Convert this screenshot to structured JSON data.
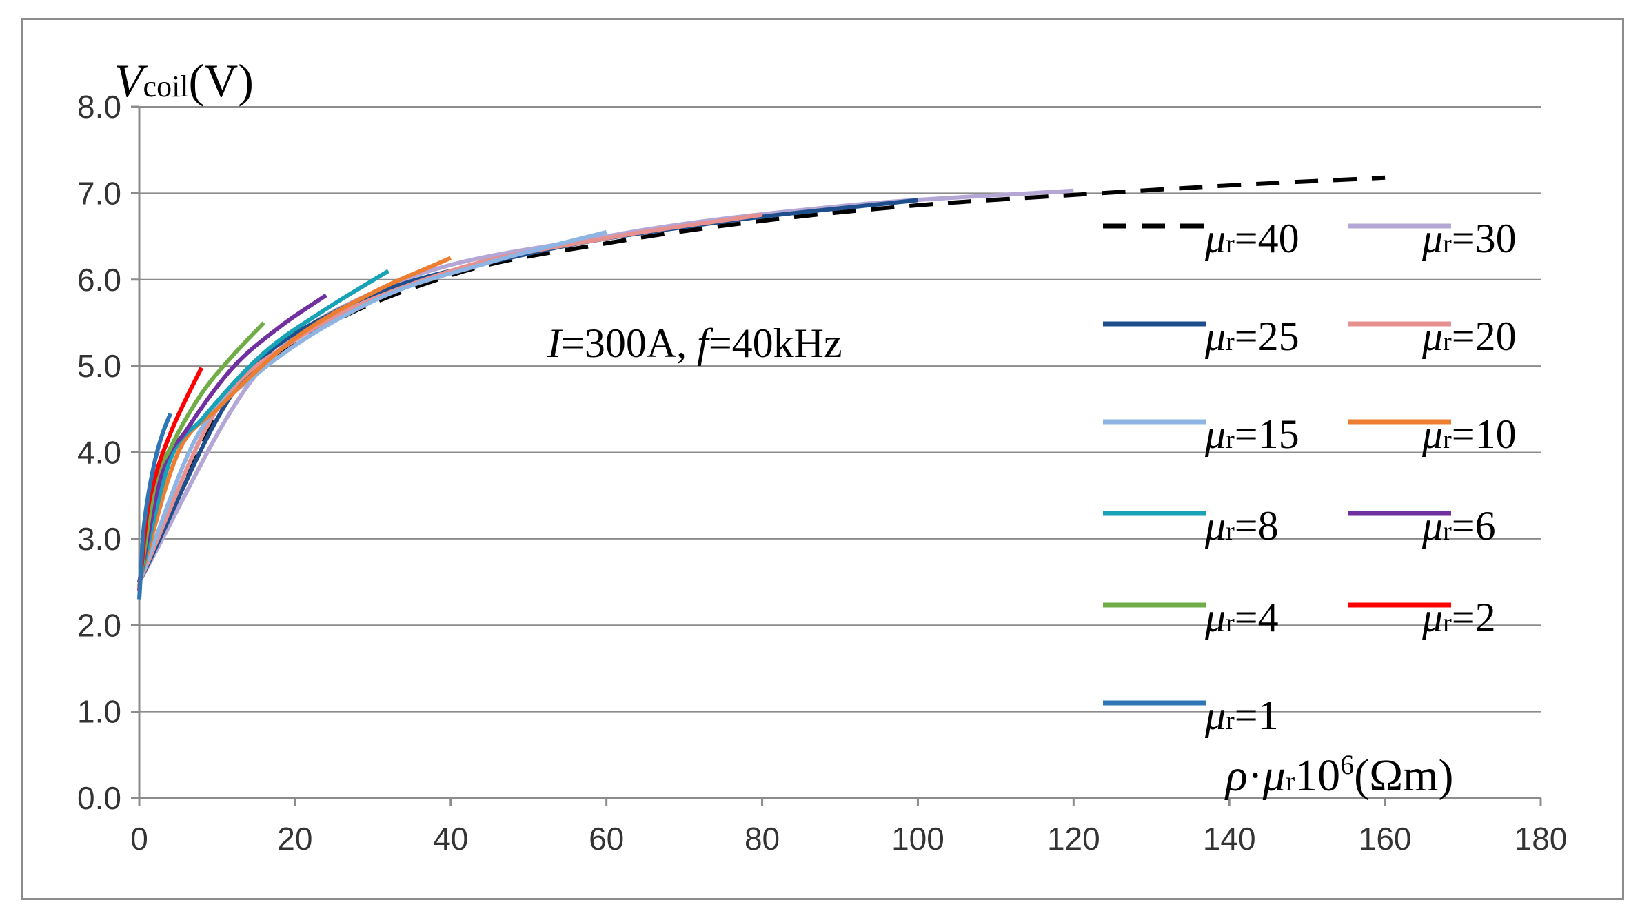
{
  "chart_data": {
    "type": "line",
    "title": "",
    "annotation": {
      "current_symbol": "I",
      "current_value": "=300A, ",
      "freq_symbol": "f",
      "freq_value": "=40kHz"
    },
    "ylabel": {
      "symbol": "V",
      "subscript": "coil",
      "unit": "(V)"
    },
    "xlabel": {
      "rho": "ρ",
      "dot": "·",
      "mu": "μ",
      "sub": "r",
      "mantissa": "10",
      "exponent": "6",
      "unit": "(Ωm)"
    },
    "xlim": [
      0,
      180
    ],
    "ylim": [
      0,
      8
    ],
    "xticks": [
      "0",
      "20",
      "40",
      "60",
      "80",
      "100",
      "120",
      "140",
      "160",
      "180"
    ],
    "yticks": [
      "0.0",
      "1.0",
      "2.0",
      "3.0",
      "4.0",
      "5.0",
      "6.0",
      "7.0",
      "8.0"
    ],
    "grid": true,
    "legend_position": "right",
    "series": [
      {
        "name": "μr=1",
        "mu_r": "1",
        "color": "#2e75b6",
        "dashed": false,
        "x": [
          0,
          0.5,
          1,
          2,
          3,
          4
        ],
        "y": [
          2.3,
          3.05,
          3.42,
          3.9,
          4.22,
          4.45
        ]
      },
      {
        "name": "μr=2",
        "mu_r": "2",
        "color": "#ff0000",
        "dashed": false,
        "x": [
          0,
          1,
          2,
          4,
          6,
          8
        ],
        "y": [
          2.4,
          3.28,
          3.7,
          4.22,
          4.62,
          4.98
        ]
      },
      {
        "name": "μr=4",
        "mu_r": "4",
        "color": "#70ad47",
        "dashed": false,
        "x": [
          0,
          2,
          4,
          8,
          12,
          16
        ],
        "y": [
          2.45,
          3.62,
          4.05,
          4.68,
          5.12,
          5.5
        ]
      },
      {
        "name": "μr=6",
        "mu_r": "6",
        "color": "#7030a0",
        "dashed": false,
        "x": [
          0,
          3,
          6,
          12,
          18,
          24
        ],
        "y": [
          2.5,
          3.8,
          4.25,
          4.98,
          5.45,
          5.82
        ]
      },
      {
        "name": "μr=8",
        "mu_r": "8",
        "color": "#17a2b8",
        "dashed": false,
        "x": [
          0,
          4,
          8,
          16,
          24,
          32
        ],
        "y": [
          2.5,
          3.92,
          4.38,
          5.15,
          5.66,
          6.1
        ]
      },
      {
        "name": "μr=10",
        "mu_r": "10",
        "color": "#ed7d31",
        "dashed": false,
        "x": [
          0,
          5,
          10,
          20,
          30,
          40
        ],
        "y": [
          2.5,
          4.0,
          4.5,
          5.32,
          5.85,
          6.25
        ]
      },
      {
        "name": "μr=15",
        "mu_r": "15",
        "color": "#8eb4e3",
        "dashed": false,
        "x": [
          0,
          7.5,
          15,
          30,
          45,
          60
        ],
        "y": [
          2.5,
          4.2,
          4.9,
          5.75,
          6.2,
          6.55
        ]
      },
      {
        "name": "μr=20",
        "mu_r": "20",
        "color": "#e6908f",
        "dashed": false,
        "x": [
          0,
          10,
          20,
          40,
          60,
          80
        ],
        "y": [
          2.5,
          4.5,
          5.3,
          6.1,
          6.48,
          6.75
        ]
      },
      {
        "name": "μr=25",
        "mu_r": "25",
        "color": "#1f4e8c",
        "dashed": false,
        "x": [
          0,
          12.5,
          25,
          50,
          75,
          100
        ],
        "y": [
          2.5,
          4.75,
          5.62,
          6.3,
          6.67,
          6.92
        ]
      },
      {
        "name": "μr=30",
        "mu_r": "30",
        "color": "#b4a7d6",
        "dashed": false,
        "x": [
          0,
          15,
          30,
          60,
          90,
          120
        ],
        "y": [
          2.5,
          4.9,
          5.85,
          6.5,
          6.85,
          7.03
        ]
      },
      {
        "name": "μr=40",
        "mu_r": "40",
        "color": "#000000",
        "dashed": true,
        "x": [
          0,
          10,
          20,
          40,
          60,
          80,
          100,
          120,
          140,
          160
        ],
        "y": [
          2.5,
          4.45,
          5.25,
          6.05,
          6.42,
          6.68,
          6.86,
          6.98,
          7.09,
          7.18
        ]
      }
    ]
  }
}
